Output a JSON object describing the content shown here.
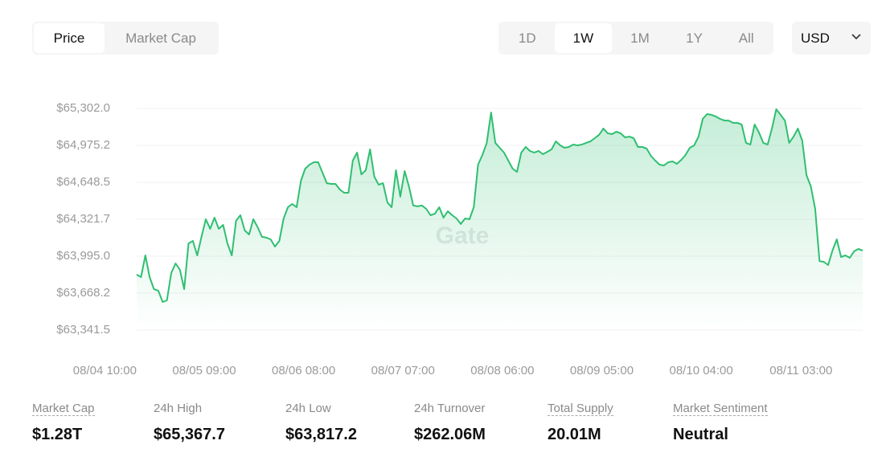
{
  "tabs": {
    "items": [
      "Price",
      "Market Cap"
    ],
    "active": 0
  },
  "ranges": {
    "items": [
      "1D",
      "1W",
      "1M",
      "1Y",
      "All"
    ],
    "active": 1
  },
  "currency": "USD",
  "chart_data": {
    "type": "line",
    "watermark": "Gate",
    "color": "#2fbf71",
    "grid": true,
    "ylim": [
      63341.5,
      65302.0
    ],
    "yticks": [
      {
        "value": 65302.0,
        "label": "$65,302.0"
      },
      {
        "value": 64975.2,
        "label": "$64,975.2"
      },
      {
        "value": 64648.5,
        "label": "$64,648.5"
      },
      {
        "value": 64321.7,
        "label": "$64,321.7"
      },
      {
        "value": 63995.0,
        "label": "$63,995.0"
      },
      {
        "value": 63668.2,
        "label": "$63,668.2"
      },
      {
        "value": 63341.5,
        "label": "$63,341.5"
      }
    ],
    "categories": [
      "08/04 10:00",
      null,
      null,
      null,
      null,
      null,
      null,
      null,
      null,
      null,
      null,
      null,
      null,
      null,
      null,
      null,
      null,
      null,
      null,
      null,
      null,
      null,
      null,
      "08/05 09:00",
      null,
      null,
      null,
      null,
      null,
      null,
      null,
      null,
      null,
      null,
      null,
      null,
      null,
      null,
      null,
      null,
      null,
      null,
      null,
      null,
      null,
      null,
      "08/06 08:00",
      null,
      null,
      null,
      null,
      null,
      null,
      null,
      null,
      null,
      null,
      null,
      null,
      null,
      null,
      null,
      null,
      null,
      null,
      null,
      null,
      null,
      null,
      "08/07 07:00",
      null,
      null,
      null,
      null,
      null,
      null,
      null,
      null,
      null,
      null,
      null,
      null,
      null,
      null,
      null,
      null,
      null,
      null,
      null,
      null,
      null,
      null,
      "08/08 06:00",
      null,
      null,
      null,
      null,
      null,
      null,
      null,
      null,
      null,
      null,
      null,
      null,
      null,
      null,
      null,
      null,
      null,
      null,
      null,
      null,
      null,
      null,
      "08/09 05:00",
      null,
      null,
      null,
      null,
      null,
      null,
      null,
      null,
      null,
      null,
      null,
      null,
      null,
      null,
      null,
      null,
      null,
      null,
      null,
      null,
      null,
      null,
      "08/10 04:00",
      null,
      null,
      null,
      null,
      null,
      null,
      null,
      null,
      null,
      null,
      null,
      null,
      null,
      null,
      null,
      null,
      null,
      null,
      null,
      null,
      null,
      null,
      "08/11 03:00",
      null,
      null,
      null,
      null,
      null,
      null,
      null
    ],
    "values": [
      63832,
      63810,
      64002,
      63810,
      63704,
      63690,
      63590,
      63604,
      63846,
      63931,
      63874,
      63704,
      64108,
      64130,
      64002,
      64166,
      64322,
      64237,
      64336,
      64237,
      64272,
      64108,
      64002,
      64308,
      64357,
      64223,
      64187,
      64322,
      64251,
      64166,
      64159,
      64144,
      64080,
      64130,
      64329,
      64428,
      64457,
      64428,
      64663,
      64769,
      64805,
      64826,
      64826,
      64734,
      64641,
      64634,
      64634,
      64585,
      64556,
      64556,
      64840,
      64911,
      64719,
      64755,
      64940,
      64698,
      64627,
      64641,
      64471,
      64428,
      64755,
      64521,
      64748,
      64613,
      64443,
      64436,
      64443,
      64414,
      64357,
      64371,
      64428,
      64336,
      64393,
      64357,
      64329,
      64280,
      64329,
      64322,
      64428,
      64805,
      64890,
      64997,
      65266,
      64997,
      64954,
      64911,
      64840,
      64769,
      64741,
      64911,
      64961,
      64926,
      64911,
      64926,
      64897,
      64918,
      64940,
      65011,
      64975,
      64954,
      64961,
      64982,
      64975,
      64982,
      64997,
      65011,
      65039,
      65068,
      65124,
      65082,
      65075,
      65096,
      65082,
      65046,
      65053,
      65039,
      64961,
      64961,
      64947,
      64883,
      64840,
      64805,
      64798,
      64826,
      64833,
      64812,
      64847,
      64890,
      64954,
      64975,
      65053,
      65210,
      65252,
      65245,
      65231,
      65210,
      65195,
      65195,
      65174,
      65174,
      65160,
      64997,
      64982,
      65160,
      65089,
      64997,
      64982,
      65124,
      65295,
      65245,
      65195,
      64997,
      65053,
      65124,
      65018,
      64712,
      64613,
      64414,
      63952,
      63945,
      63917,
      64045,
      64144,
      63988,
      64002,
      63981,
      64038,
      64059,
      64045
    ]
  },
  "stats": [
    {
      "label": "Market Cap",
      "value": "$1.28T",
      "dotted": true
    },
    {
      "label": "24h High",
      "value": "$65,367.7",
      "dotted": false
    },
    {
      "label": "24h Low",
      "value": "$63,817.2",
      "dotted": false
    },
    {
      "label": "24h Turnover",
      "value": "$262.06M",
      "dotted": false
    },
    {
      "label": "Total Supply",
      "value": "20.01M",
      "dotted": true
    },
    {
      "label": "Market Sentiment",
      "value": "Neutral",
      "dotted": true
    }
  ]
}
